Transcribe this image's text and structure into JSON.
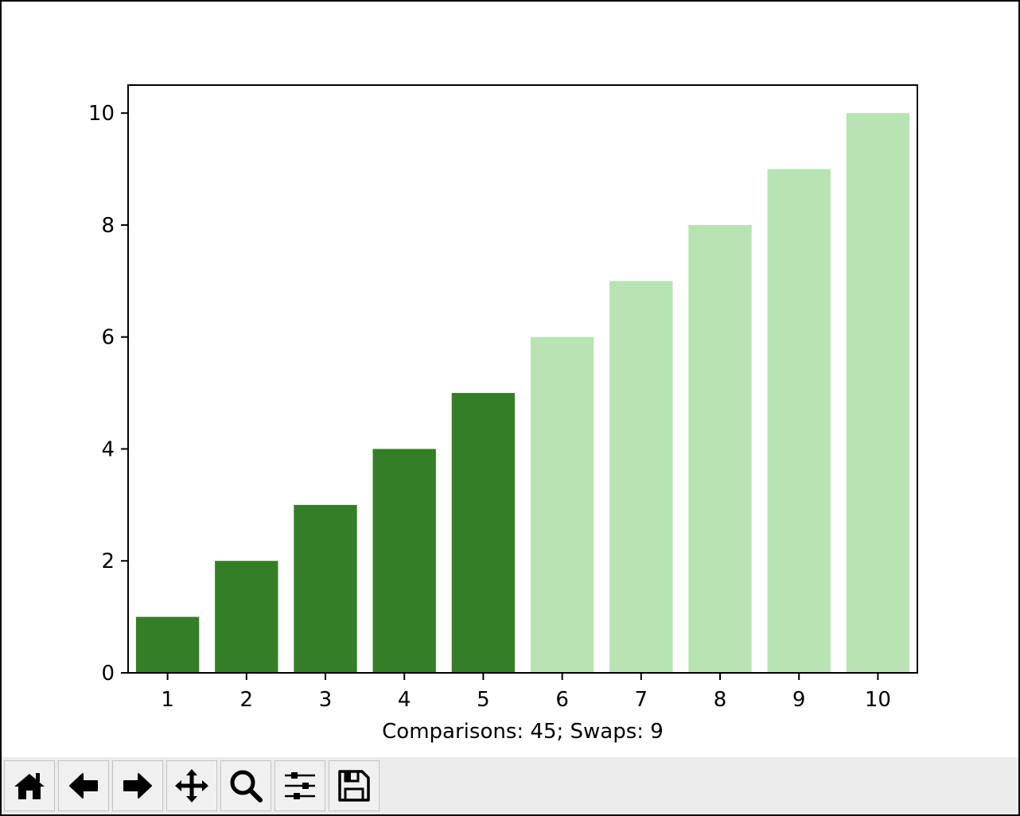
{
  "chart_data": {
    "type": "bar",
    "categories": [
      "1",
      "2",
      "3",
      "4",
      "5",
      "6",
      "7",
      "8",
      "9",
      "10"
    ],
    "values": [
      1,
      2,
      3,
      4,
      5,
      6,
      7,
      8,
      9,
      10
    ],
    "bar_colors": [
      "#357e28",
      "#357e28",
      "#357e28",
      "#357e28",
      "#357e28",
      "#b7e4b2",
      "#b7e4b2",
      "#b7e4b2",
      "#b7e4b2",
      "#b7e4b2"
    ],
    "title": "",
    "xlabel": "Comparisons: 45; Swaps: 9",
    "ylabel": "",
    "ylim": [
      0,
      10.5
    ],
    "yticks": [
      0,
      2,
      4,
      6,
      8,
      10
    ],
    "grid": false
  },
  "toolbar": {
    "buttons": [
      {
        "name": "home-button",
        "icon": "home-icon"
      },
      {
        "name": "back-button",
        "icon": "arrow-left-icon"
      },
      {
        "name": "forward-button",
        "icon": "arrow-right-icon"
      },
      {
        "name": "pan-button",
        "icon": "move-icon"
      },
      {
        "name": "zoom-button",
        "icon": "magnifier-icon"
      },
      {
        "name": "configure-subplots-button",
        "icon": "sliders-icon"
      },
      {
        "name": "save-button",
        "icon": "floppy-disk-icon"
      }
    ]
  }
}
